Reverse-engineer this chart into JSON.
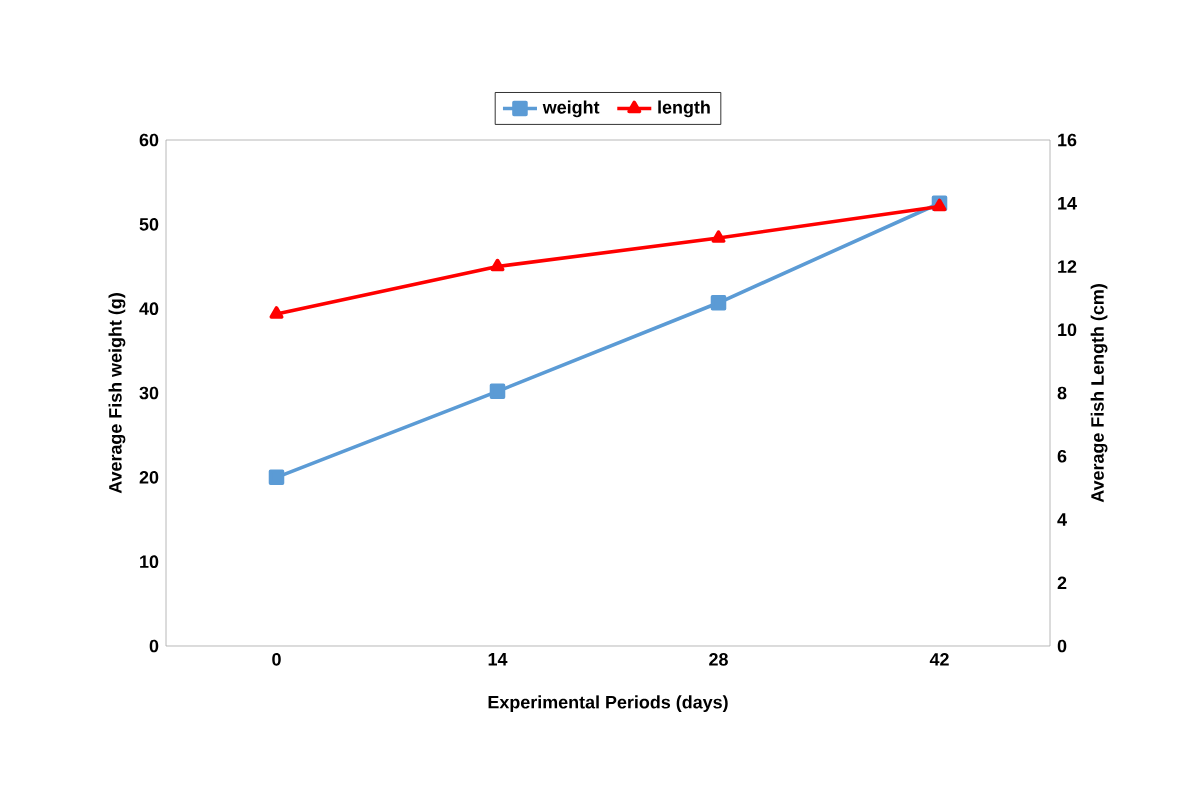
{
  "chart_data": {
    "type": "line",
    "xlabel": "Experimental Periods (days)",
    "ylabel": "Average Fish weight (g)",
    "y2label": "Average Fish Length (cm)",
    "categories": [
      "0",
      "14",
      "28",
      "42"
    ],
    "series": [
      {
        "name": "weight",
        "color": "#5b9bd5",
        "marker": "square",
        "values": [
          20,
          30.2,
          40.7,
          52.5
        ]
      },
      {
        "name": "length",
        "color": "#ff0000",
        "marker": "triangle",
        "axis": "y2",
        "values": [
          10.5,
          12,
          12.9,
          13.9
        ]
      }
    ],
    "ylim": [
      0,
      60
    ],
    "yticks": [
      0,
      10,
      20,
      30,
      40,
      50,
      60
    ],
    "y2lim": [
      0,
      16
    ],
    "y2ticks": [
      0,
      2,
      4,
      6,
      8,
      10,
      12,
      14,
      16
    ],
    "legend": "top",
    "grid": false
  }
}
